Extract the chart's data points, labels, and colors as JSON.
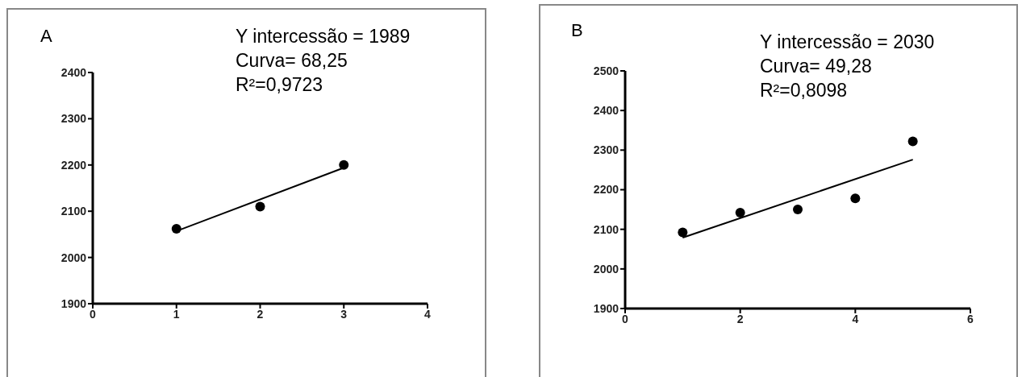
{
  "chart_data": [
    {
      "type": "scatter",
      "title": "A",
      "xlim": [
        0,
        4
      ],
      "xticks": [
        0,
        1,
        2,
        3,
        4
      ],
      "ylim": [
        1900,
        2400
      ],
      "yticks": [
        1900,
        2000,
        2100,
        2200,
        2300,
        2400
      ],
      "annotations": [
        "Y intercessão = 1989",
        "Curva= 68,25",
        "R²=0,9723"
      ],
      "series": [
        {
          "color": "#000000",
          "marker": "circle",
          "x": [
            1,
            2,
            3
          ],
          "values": [
            2062,
            2110,
            2200
          ]
        },
        {
          "type": "line",
          "color": "#000000",
          "marker": "none",
          "x": [
            1,
            3
          ],
          "values": [
            2057,
            2194
          ]
        }
      ]
    },
    {
      "type": "scatter",
      "title": "B",
      "xlim": [
        0,
        6
      ],
      "xticks": [
        0,
        2,
        4,
        6
      ],
      "ylim": [
        1900,
        2500
      ],
      "yticks": [
        1900,
        2000,
        2100,
        2200,
        2300,
        2400,
        2500
      ],
      "annotations": [
        "Y intercessão = 2030",
        "Curva= 49,28",
        "R²=0,8098"
      ],
      "series": [
        {
          "color": "#000000",
          "marker": "circle",
          "x": [
            1,
            2,
            3,
            4,
            5
          ],
          "values": [
            2092,
            2142,
            2150,
            2178,
            2322
          ]
        },
        {
          "type": "line",
          "color": "#000000",
          "marker": "none",
          "x": [
            1,
            5
          ],
          "values": [
            2079,
            2276
          ]
        }
      ]
    }
  ]
}
